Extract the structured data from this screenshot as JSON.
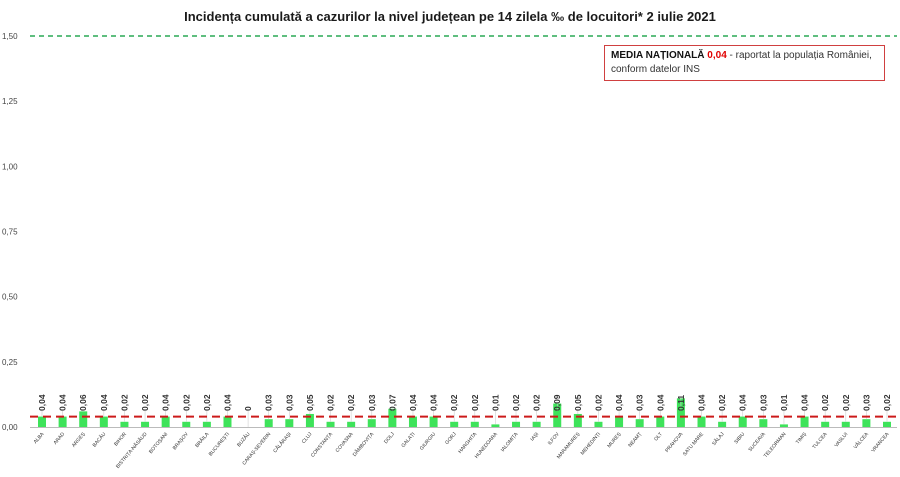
{
  "chart_data": {
    "type": "bar",
    "title": "Incidența cumulată a cazurilor la nivel județean pe 14 zilela ‰ de locuitori*  2 iulie 2021",
    "xlabel": "",
    "ylabel": "",
    "ylim": [
      0,
      1.5
    ],
    "yticks": [
      "0,00",
      "0,25",
      "0,50",
      "0,75",
      "1,00",
      "1,25",
      "1,50"
    ],
    "threshold": 1.5,
    "national_average": 0.04,
    "categories": [
      "ALBA",
      "ARAD",
      "ARGEȘ",
      "BACĂU",
      "BIHOR",
      "BISTRIȚA-NĂSĂUD",
      "BOTOȘANI",
      "BRAȘOV",
      "BRĂILA",
      "BUCUREȘTI",
      "BUZĂU",
      "CARAȘ-SEVERIN",
      "CĂLĂRAȘI",
      "CLUJ",
      "CONSTANȚA",
      "COVASNA",
      "DÂMBOVIȚA",
      "DOLJ",
      "GALAȚI",
      "GIURGIU",
      "GORJ",
      "HARGHITA",
      "HUNEDOARA",
      "IALOMIȚA",
      "IAȘI",
      "ILFOV",
      "MARAMUREȘ",
      "MEHEDINȚI",
      "MUREȘ",
      "NEAMȚ",
      "OLT",
      "PRAHOVA",
      "SATU MARE",
      "SĂLAJ",
      "SIBIU",
      "SUCEAVA",
      "TELEORMAN",
      "TIMIȘ",
      "TULCEA",
      "VASLUI",
      "VÂLCEA",
      "VRANCEA"
    ],
    "values": [
      0.04,
      0.04,
      0.06,
      0.04,
      0.02,
      0.02,
      0.04,
      0.02,
      0.02,
      0.04,
      0,
      0.03,
      0.03,
      0.05,
      0.02,
      0.02,
      0.03,
      0.07,
      0.04,
      0.04,
      0.02,
      0.02,
      0.01,
      0.02,
      0.02,
      0.09,
      0.05,
      0.02,
      0.04,
      0.03,
      0.04,
      0.11,
      0.04,
      0.02,
      0.04,
      0.03,
      0.01,
      0.04,
      0.02,
      0.02,
      0.03,
      0.02
    ],
    "value_labels": [
      "0,04",
      "0,04",
      "0,06",
      "0,04",
      "0,02",
      "0,02",
      "0,04",
      "0,02",
      "0,02",
      "0,04",
      "0",
      "0,03",
      "0,03",
      "0,05",
      "0,02",
      "0,02",
      "0,03",
      "0,07",
      "0,04",
      "0,04",
      "0,02",
      "0,02",
      "0,01",
      "0,02",
      "0,02",
      "0,09",
      "0,05",
      "0,02",
      "0,04",
      "0,03",
      "0,04",
      "0,11",
      "0,04",
      "0,02",
      "0,04",
      "0,03",
      "0,01",
      "0,04",
      "0,02",
      "0,02",
      "0,03",
      "0,02"
    ],
    "colors": {
      "bar": "#3ee35a",
      "threshold": "#2aa855",
      "average": "#cc1a1a",
      "box_border": "#d04040"
    }
  },
  "note": {
    "label": "MEDIA NAȚIONALĂ",
    "value": "0,04",
    "text": " - raportat la populația României, conform datelor INS"
  }
}
